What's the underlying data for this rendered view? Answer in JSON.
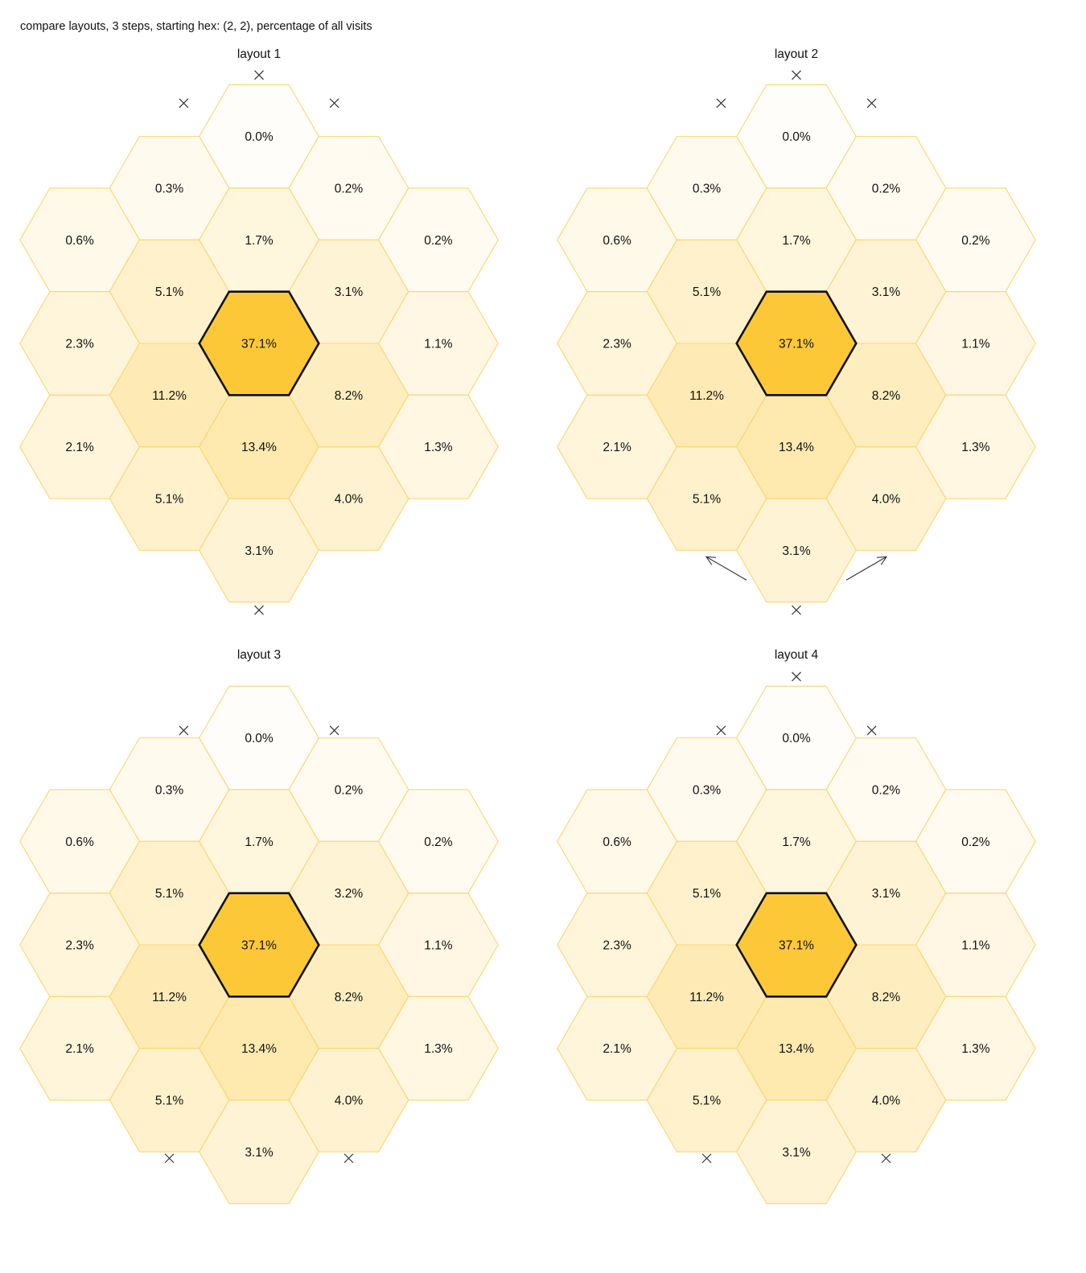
{
  "title": "compare layouts, 3 steps, starting hex: (2, 2), percentage of all visits",
  "colors": {
    "max": "#fcc838",
    "edge": "#f9d570",
    "start_edge": "#111111",
    "marker": "#333333"
  },
  "panels": [
    {
      "title": "layout 1",
      "start_cell": "0,0",
      "cells": [
        {
          "q": 0,
          "r": -3,
          "label": "0.0%",
          "value": 0.0
        },
        {
          "q": -1,
          "r": -2,
          "label": "0.3%",
          "value": 0.3
        },
        {
          "q": 1,
          "r": -3,
          "label": "0.2%",
          "value": 0.2
        },
        {
          "q": -2,
          "r": -1,
          "label": "0.6%",
          "value": 0.6
        },
        {
          "q": 0,
          "r": -2,
          "label": "1.7%",
          "value": 1.7
        },
        {
          "q": 2,
          "r": -3,
          "label": "0.2%",
          "value": 0.2
        },
        {
          "q": -1,
          "r": -1,
          "label": "5.1%",
          "value": 5.1
        },
        {
          "q": 1,
          "r": -2,
          "label": "3.1%",
          "value": 3.1
        },
        {
          "q": -2,
          "r": 0,
          "label": "2.3%",
          "value": 2.3
        },
        {
          "q": 0,
          "r": -1,
          "label": "37.1%",
          "value": 37.1
        },
        {
          "q": 2,
          "r": -2,
          "label": "1.1%",
          "value": 1.1
        },
        {
          "q": -1,
          "r": 0,
          "label": "11.2%",
          "value": 11.2
        },
        {
          "q": 1,
          "r": -1,
          "label": "8.2%",
          "value": 8.2
        },
        {
          "q": -2,
          "r": 1,
          "label": "2.1%",
          "value": 2.1
        },
        {
          "q": 0,
          "r": 0,
          "label": "13.4%",
          "value": 13.4
        },
        {
          "q": 2,
          "r": -1,
          "label": "1.3%",
          "value": 1.3
        },
        {
          "q": -1,
          "r": 1,
          "label": "5.1%",
          "value": 5.1
        },
        {
          "q": 1,
          "r": 0,
          "label": "4.0%",
          "value": 4.0
        },
        {
          "q": 0,
          "r": 1,
          "label": "3.1%",
          "value": 3.1
        }
      ],
      "markers": [
        "top",
        "upper-left",
        "upper-right",
        "bottom"
      ]
    },
    {
      "title": "layout 2",
      "start_cell": "0,0",
      "cells": [
        {
          "q": 0,
          "r": -3,
          "label": "0.0%",
          "value": 0.0
        },
        {
          "q": -1,
          "r": -2,
          "label": "0.3%",
          "value": 0.3
        },
        {
          "q": 1,
          "r": -3,
          "label": "0.2%",
          "value": 0.2
        },
        {
          "q": -2,
          "r": -1,
          "label": "0.6%",
          "value": 0.6
        },
        {
          "q": 0,
          "r": -2,
          "label": "1.7%",
          "value": 1.7
        },
        {
          "q": 2,
          "r": -3,
          "label": "0.2%",
          "value": 0.2
        },
        {
          "q": -1,
          "r": -1,
          "label": "5.1%",
          "value": 5.1
        },
        {
          "q": 1,
          "r": -2,
          "label": "3.1%",
          "value": 3.1
        },
        {
          "q": -2,
          "r": 0,
          "label": "2.3%",
          "value": 2.3
        },
        {
          "q": 0,
          "r": -1,
          "label": "37.1%",
          "value": 37.1
        },
        {
          "q": 2,
          "r": -2,
          "label": "1.1%",
          "value": 1.1
        },
        {
          "q": -1,
          "r": 0,
          "label": "11.2%",
          "value": 11.2
        },
        {
          "q": 1,
          "r": -1,
          "label": "8.2%",
          "value": 8.2
        },
        {
          "q": -2,
          "r": 1,
          "label": "2.1%",
          "value": 2.1
        },
        {
          "q": 0,
          "r": 0,
          "label": "13.4%",
          "value": 13.4
        },
        {
          "q": 2,
          "r": -1,
          "label": "1.3%",
          "value": 1.3
        },
        {
          "q": -1,
          "r": 1,
          "label": "5.1%",
          "value": 5.1
        },
        {
          "q": 1,
          "r": 0,
          "label": "4.0%",
          "value": 4.0
        },
        {
          "q": 0,
          "r": 1,
          "label": "3.1%",
          "value": 3.1
        }
      ],
      "markers": [
        "top",
        "upper-left",
        "upper-right",
        "bottom"
      ],
      "arrows": [
        "lower-left",
        "lower-right"
      ]
    },
    {
      "title": "layout 3",
      "start_cell": "0,0",
      "cells": [
        {
          "q": 0,
          "r": -3,
          "label": "0.0%",
          "value": 0.0
        },
        {
          "q": -1,
          "r": -2,
          "label": "0.3%",
          "value": 0.3
        },
        {
          "q": 1,
          "r": -3,
          "label": "0.2%",
          "value": 0.2
        },
        {
          "q": -2,
          "r": -1,
          "label": "0.6%",
          "value": 0.6
        },
        {
          "q": 0,
          "r": -2,
          "label": "1.7%",
          "value": 1.7
        },
        {
          "q": 2,
          "r": -3,
          "label": "0.2%",
          "value": 0.2
        },
        {
          "q": -1,
          "r": -1,
          "label": "5.1%",
          "value": 5.1
        },
        {
          "q": 1,
          "r": -2,
          "label": "3.2%",
          "value": 3.2
        },
        {
          "q": -2,
          "r": 0,
          "label": "2.3%",
          "value": 2.3
        },
        {
          "q": 0,
          "r": -1,
          "label": "37.1%",
          "value": 37.1
        },
        {
          "q": 2,
          "r": -2,
          "label": "1.1%",
          "value": 1.1
        },
        {
          "q": -1,
          "r": 0,
          "label": "11.2%",
          "value": 11.2
        },
        {
          "q": 1,
          "r": -1,
          "label": "8.2%",
          "value": 8.2
        },
        {
          "q": -2,
          "r": 1,
          "label": "2.1%",
          "value": 2.1
        },
        {
          "q": 0,
          "r": 0,
          "label": "13.4%",
          "value": 13.4
        },
        {
          "q": 2,
          "r": -1,
          "label": "1.3%",
          "value": 1.3
        },
        {
          "q": -1,
          "r": 1,
          "label": "5.1%",
          "value": 5.1
        },
        {
          "q": 1,
          "r": 0,
          "label": "4.0%",
          "value": 4.0
        },
        {
          "q": 0,
          "r": 1,
          "label": "3.1%",
          "value": 3.1
        }
      ],
      "markers": [
        "upper-left",
        "upper-right",
        "lower-left",
        "lower-right"
      ]
    },
    {
      "title": "layout 4",
      "start_cell": "0,0",
      "cells": [
        {
          "q": 0,
          "r": -3,
          "label": "0.0%",
          "value": 0.0
        },
        {
          "q": -1,
          "r": -2,
          "label": "0.3%",
          "value": 0.3
        },
        {
          "q": 1,
          "r": -3,
          "label": "0.2%",
          "value": 0.2
        },
        {
          "q": -2,
          "r": -1,
          "label": "0.6%",
          "value": 0.6
        },
        {
          "q": 0,
          "r": -2,
          "label": "1.7%",
          "value": 1.7
        },
        {
          "q": 2,
          "r": -3,
          "label": "0.2%",
          "value": 0.2
        },
        {
          "q": -1,
          "r": -1,
          "label": "5.1%",
          "value": 5.1
        },
        {
          "q": 1,
          "r": -2,
          "label": "3.1%",
          "value": 3.1
        },
        {
          "q": -2,
          "r": 0,
          "label": "2.3%",
          "value": 2.3
        },
        {
          "q": 0,
          "r": -1,
          "label": "37.1%",
          "value": 37.1
        },
        {
          "q": 2,
          "r": -2,
          "label": "1.1%",
          "value": 1.1
        },
        {
          "q": -1,
          "r": 0,
          "label": "11.2%",
          "value": 11.2
        },
        {
          "q": 1,
          "r": -1,
          "label": "8.2%",
          "value": 8.2
        },
        {
          "q": -2,
          "r": 1,
          "label": "2.1%",
          "value": 2.1
        },
        {
          "q": 0,
          "r": 0,
          "label": "13.4%",
          "value": 13.4
        },
        {
          "q": 2,
          "r": -1,
          "label": "1.3%",
          "value": 1.3
        },
        {
          "q": -1,
          "r": 1,
          "label": "5.1%",
          "value": 5.1
        },
        {
          "q": 1,
          "r": 0,
          "label": "4.0%",
          "value": 4.0
        },
        {
          "q": 0,
          "r": 1,
          "label": "3.1%",
          "value": 3.1
        }
      ],
      "markers": [
        "top",
        "upper-left",
        "upper-right",
        "lower-left",
        "lower-right"
      ]
    }
  ]
}
